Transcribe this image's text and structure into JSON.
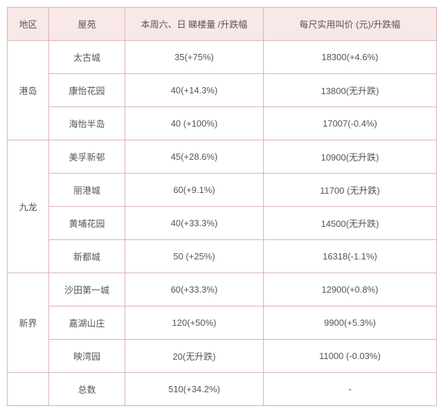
{
  "columns": [
    "地区",
    "屋苑",
    "本周六、日 睇楼量 /升跌幅",
    "每尺实用叫价 (元)/升跌幅"
  ],
  "groups": [
    {
      "region": "港岛",
      "rows": [
        {
          "estate": "太古城",
          "vol": "35(+75%)",
          "price": "18300(+4.6%)"
        },
        {
          "estate": "康怡花园",
          "vol": "40(+14.3%)",
          "price": "13800(无升跌)"
        },
        {
          "estate": "海怡半岛",
          "vol": "40 (+100%)",
          "price": "17007(-0.4%)"
        }
      ]
    },
    {
      "region": "九龙",
      "rows": [
        {
          "estate": "美孚新邨",
          "vol": "45(+28.6%)",
          "price": "10900(无升跌)"
        },
        {
          "estate": "丽港城",
          "vol": "60(+9.1%)",
          "price": "11700 (无升跌)"
        },
        {
          "estate": "黄埔花园",
          "vol": "40(+33.3%)",
          "price": "14500(无升跌)"
        },
        {
          "estate": "新都城",
          "vol": "50 (+25%)",
          "price": "16318(-1.1%)"
        }
      ]
    },
    {
      "region": "新界",
      "rows": [
        {
          "estate": "沙田第一城",
          "vol": "60(+33.3%)",
          "price": "12900(+0.8%)"
        },
        {
          "estate": "嘉湖山庄",
          "vol": "120(+50%)",
          "price": "9900(+5.3%)"
        },
        {
          "estate": "映湾园",
          "vol": "20(无升跌)",
          "price": "11000 (-0.03%)"
        }
      ]
    }
  ],
  "total": {
    "region": "",
    "estate": "总数",
    "vol": "510(+34.2%)",
    "price": "-"
  },
  "style": {
    "header_bg": "#f9e8e8",
    "border_color": "#d8b2b2",
    "text_color": "#555555",
    "font_size": 13
  }
}
